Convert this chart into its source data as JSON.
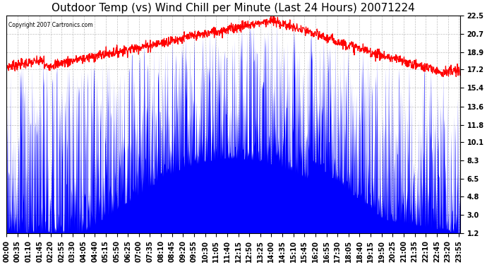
{
  "title": "Outdoor Temp (vs) Wind Chill per Minute (Last 24 Hours) 20071224",
  "copyright_text": "Copyright 2007 Cartronics.com",
  "yticks": [
    1.2,
    3.0,
    4.8,
    6.5,
    8.3,
    10.1,
    11.8,
    13.6,
    15.4,
    17.2,
    18.9,
    20.7,
    22.5
  ],
  "ylim": [
    1.2,
    22.5
  ],
  "background_color": "#ffffff",
  "plot_bg_color": "#ffffff",
  "grid_color": "#b0b0b0",
  "blue_color": "#0000ff",
  "red_color": "#ff0000",
  "title_fontsize": 11,
  "tick_fontsize": 7,
  "num_points": 1440,
  "x_tick_step": 35,
  "x_tick_start": 35
}
